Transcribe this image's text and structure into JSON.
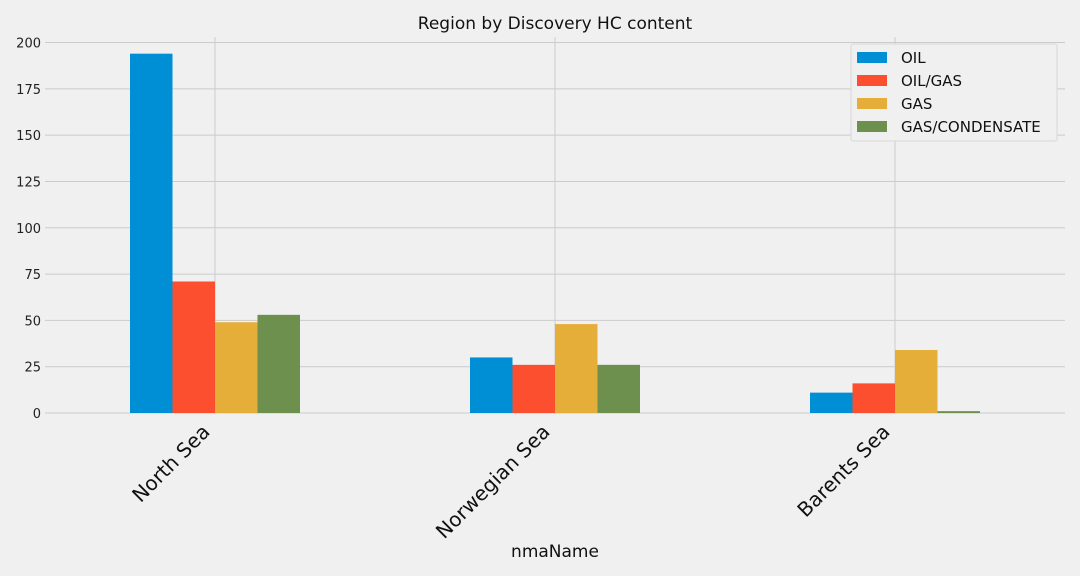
{
  "chart_data": {
    "type": "bar",
    "title": "Region by Discovery HC content",
    "xlabel": "nmaName",
    "ylabel": "",
    "ylim": [
      0,
      203
    ],
    "yticks": [
      0,
      25,
      50,
      75,
      100,
      125,
      150,
      175,
      200
    ],
    "categories": [
      "North Sea",
      "Norwegian Sea",
      "Barents Sea"
    ],
    "series": [
      {
        "name": "OIL",
        "color": "#008fd5",
        "values": [
          194,
          30,
          11
        ]
      },
      {
        "name": "OIL/GAS",
        "color": "#fc4f30",
        "values": [
          71,
          26,
          16
        ]
      },
      {
        "name": "GAS",
        "color": "#e5ae38",
        "values": [
          49,
          48,
          34
        ]
      },
      {
        "name": "GAS/CONDENSATE",
        "color": "#6d904f",
        "values": [
          53,
          26,
          1
        ]
      }
    ],
    "grid": true,
    "legend_position": "top-right"
  }
}
